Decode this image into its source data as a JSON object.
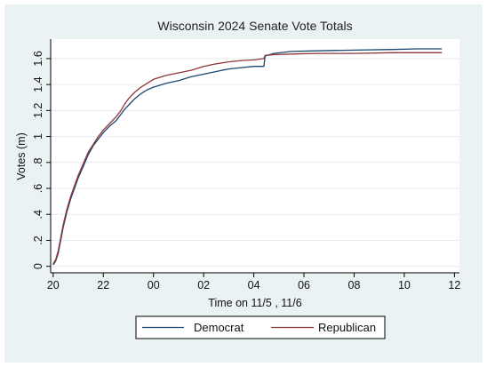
{
  "chart_data": {
    "type": "line",
    "title": "Wisconsin 2024 Senate Vote Totals",
    "xlabel": "Time on 11/5 , 11/6",
    "ylabel": "Votes (m)",
    "x_unit": "hours since 11/5 00:00",
    "xlim": [
      19.9,
      36.2
    ],
    "ylim": [
      -0.05,
      1.75
    ],
    "x_ticks": [
      {
        "value": 20,
        "label": "20"
      },
      {
        "value": 22,
        "label": "22"
      },
      {
        "value": 24,
        "label": "00"
      },
      {
        "value": 26,
        "label": "02"
      },
      {
        "value": 28,
        "label": "04"
      },
      {
        "value": 30,
        "label": "06"
      },
      {
        "value": 32,
        "label": "08"
      },
      {
        "value": 34,
        "label": "10"
      },
      {
        "value": 36,
        "label": "12"
      }
    ],
    "y_ticks": [
      {
        "value": 0,
        "label": "0"
      },
      {
        "value": 0.2,
        "label": ".2"
      },
      {
        "value": 0.4,
        "label": ".4"
      },
      {
        "value": 0.6,
        "label": ".6"
      },
      {
        "value": 0.8,
        "label": ".8"
      },
      {
        "value": 1.0,
        "label": "1"
      },
      {
        "value": 1.2,
        "label": "1.2"
      },
      {
        "value": 1.4,
        "label": "1.4"
      },
      {
        "value": 1.6,
        "label": "1.6"
      }
    ],
    "grid": "horizontal",
    "legend_position": "bottom",
    "series": [
      {
        "name": "Democrat",
        "color": "#1a476f",
        "points": [
          [
            20.0,
            0.01
          ],
          [
            20.1,
            0.04
          ],
          [
            20.2,
            0.1
          ],
          [
            20.3,
            0.2
          ],
          [
            20.4,
            0.3
          ],
          [
            20.55,
            0.42
          ],
          [
            20.7,
            0.52
          ],
          [
            20.85,
            0.6
          ],
          [
            21.0,
            0.68
          ],
          [
            21.2,
            0.77
          ],
          [
            21.4,
            0.86
          ],
          [
            21.6,
            0.93
          ],
          [
            21.8,
            0.98
          ],
          [
            22.0,
            1.03
          ],
          [
            22.25,
            1.08
          ],
          [
            22.5,
            1.12
          ],
          [
            22.7,
            1.17
          ],
          [
            22.85,
            1.21
          ],
          [
            23.0,
            1.24
          ],
          [
            23.25,
            1.29
          ],
          [
            23.5,
            1.33
          ],
          [
            23.75,
            1.36
          ],
          [
            24.0,
            1.38
          ],
          [
            24.5,
            1.41
          ],
          [
            25.0,
            1.43
          ],
          [
            25.5,
            1.46
          ],
          [
            26.0,
            1.48
          ],
          [
            26.5,
            1.5
          ],
          [
            27.0,
            1.52
          ],
          [
            27.5,
            1.53
          ],
          [
            28.0,
            1.54
          ],
          [
            28.4,
            1.54
          ],
          [
            28.45,
            1.62
          ],
          [
            28.8,
            1.64
          ],
          [
            29.5,
            1.655
          ],
          [
            30.5,
            1.66
          ],
          [
            32.0,
            1.665
          ],
          [
            33.5,
            1.67
          ],
          [
            34.5,
            1.675
          ],
          [
            35.5,
            1.675
          ]
        ]
      },
      {
        "name": "Republican",
        "color": "#90353b",
        "points": [
          [
            20.0,
            0.02
          ],
          [
            20.1,
            0.05
          ],
          [
            20.2,
            0.12
          ],
          [
            20.3,
            0.22
          ],
          [
            20.4,
            0.32
          ],
          [
            20.55,
            0.44
          ],
          [
            20.7,
            0.54
          ],
          [
            20.85,
            0.62
          ],
          [
            21.0,
            0.7
          ],
          [
            21.2,
            0.79
          ],
          [
            21.4,
            0.88
          ],
          [
            21.6,
            0.94
          ],
          [
            21.8,
            1.0
          ],
          [
            22.0,
            1.05
          ],
          [
            22.25,
            1.1
          ],
          [
            22.5,
            1.15
          ],
          [
            22.7,
            1.2
          ],
          [
            22.85,
            1.25
          ],
          [
            23.0,
            1.29
          ],
          [
            23.25,
            1.34
          ],
          [
            23.5,
            1.38
          ],
          [
            23.75,
            1.41
          ],
          [
            24.0,
            1.44
          ],
          [
            24.5,
            1.47
          ],
          [
            25.0,
            1.49
          ],
          [
            25.5,
            1.51
          ],
          [
            26.0,
            1.54
          ],
          [
            26.5,
            1.56
          ],
          [
            27.0,
            1.575
          ],
          [
            27.5,
            1.585
          ],
          [
            28.0,
            1.59
          ],
          [
            28.4,
            1.6
          ],
          [
            28.45,
            1.625
          ],
          [
            28.8,
            1.63
          ],
          [
            29.5,
            1.635
          ],
          [
            30.5,
            1.64
          ],
          [
            32.0,
            1.64
          ],
          [
            33.5,
            1.645
          ],
          [
            34.5,
            1.645
          ],
          [
            35.5,
            1.645
          ]
        ]
      }
    ]
  }
}
